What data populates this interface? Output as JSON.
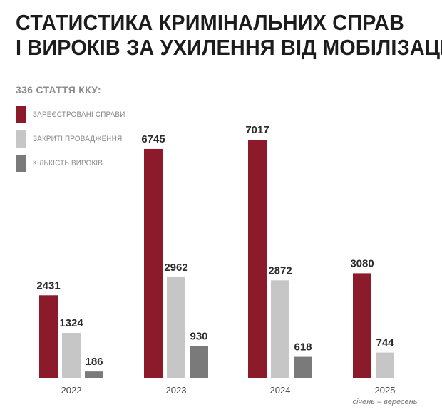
{
  "title_line1": "СТАТИСТИКА КРИМІНАЛЬНИХ СПРАВ",
  "title_line2": "І ВИРОКІВ ЗА УХИЛЕННЯ ВІД МОБІЛІЗАЦІЇ",
  "subtitle": "336 СТАТТЯ ККУ:",
  "colors": {
    "registered": "#8b1a2b",
    "closed": "#c6c6c6",
    "verdicts": "#7a7a7a",
    "axis": "#bdbdbd"
  },
  "chart_data": {
    "type": "bar",
    "categories": [
      "2022",
      "2023",
      "2024",
      "2025"
    ],
    "category_notes": [
      "",
      "",
      "",
      "січень – вересень"
    ],
    "series": [
      {
        "name": "ЗАРЕЄСТРОВАНІ СПРАВИ",
        "color": "#8b1a2b",
        "values": [
          2431,
          6745,
          7017,
          3080
        ]
      },
      {
        "name": "ЗАКРИТІ ПРОВАДЖЕННЯ",
        "color": "#c6c6c6",
        "values": [
          1324,
          2962,
          2872,
          744
        ]
      },
      {
        "name": "КІЛЬКІСТЬ ВИРОКІВ",
        "color": "#7a7a7a",
        "values": [
          186,
          930,
          618,
          null
        ]
      }
    ],
    "ylim": [
      0,
      8000
    ],
    "legend": "top-left",
    "grid": false
  }
}
